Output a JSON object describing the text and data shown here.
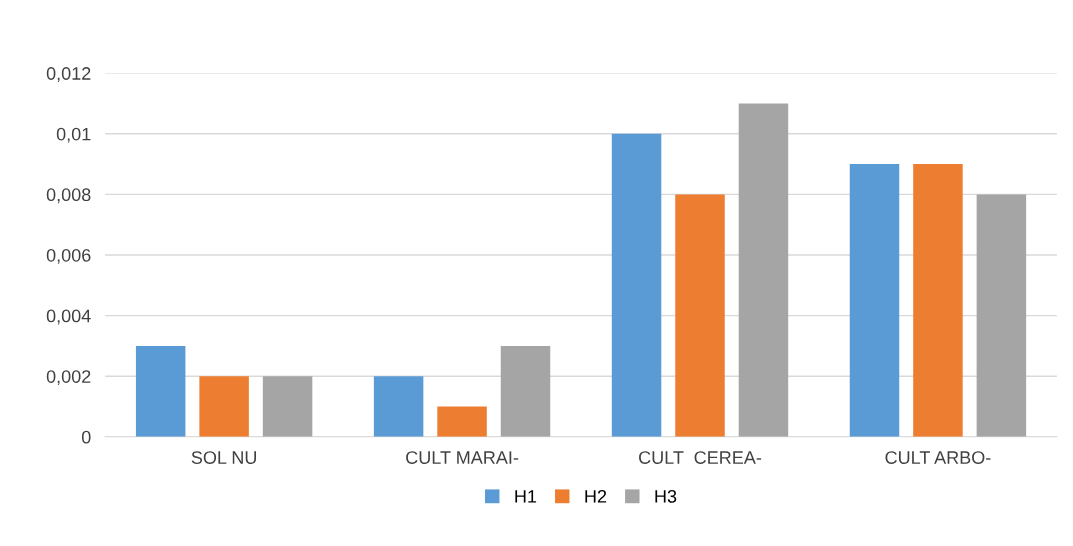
{
  "chart_data": {
    "type": "bar",
    "categories": [
      "SOL NU",
      "CULT MARAI-",
      "CULT  CEREA-",
      "CULT ARBO-"
    ],
    "series": [
      {
        "name": "H1",
        "color": "#5b9bd5",
        "values": [
          0.003,
          0.002,
          0.01,
          0.009
        ]
      },
      {
        "name": "H2",
        "color": "#ed7d31",
        "values": [
          0.002,
          0.001,
          0.008,
          0.009
        ]
      },
      {
        "name": "H3",
        "color": "#a5a5a5",
        "values": [
          0.002,
          0.003,
          0.011,
          0.008
        ]
      }
    ],
    "ylim": [
      0,
      0.012
    ],
    "yticks": [
      {
        "value": 0,
        "label": "0"
      },
      {
        "value": 0.002,
        "label": "0,002"
      },
      {
        "value": 0.004,
        "label": "0,004"
      },
      {
        "value": 0.006,
        "label": "0,006"
      },
      {
        "value": 0.008,
        "label": "0,008"
      },
      {
        "value": 0.01,
        "label": "0,01"
      },
      {
        "value": 0.012,
        "label": "0,012"
      }
    ],
    "grid": "y",
    "legend": "bottom"
  }
}
